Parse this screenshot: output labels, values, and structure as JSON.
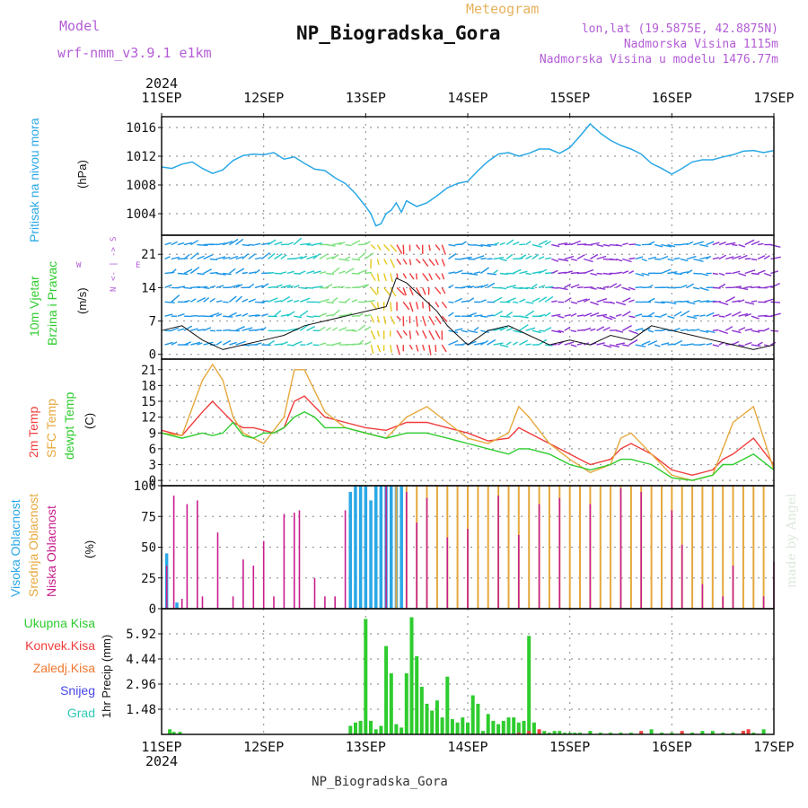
{
  "header": {
    "model_label": "Model",
    "model_name": "wrf-nmm_v3.9.1 e1km",
    "product": "Meteogram",
    "station": "NP_Biogradska_Gora",
    "lonlat": "lon,lat (19.5875E, 42.8875N)",
    "altitude": "Nadmorska Visina 1115m",
    "model_altitude": "Nadmorska Visina u modelu 1476.77m",
    "year_top": "2024",
    "year_bottom": "2024",
    "footer_station": "NP_Biogradska_Gora",
    "credit": "made by Angel"
  },
  "colors": {
    "pressure": "#2aa8e6",
    "temp2m": "#f03c3c",
    "sfc": "#e6a83c",
    "dewpt": "#2ecc2e",
    "high_cloud": "#2aa8e6",
    "mid_cloud": "#e6a83c",
    "low_cloud": "#c81e8c",
    "total_precip": "#2ecc2e",
    "conv_precip": "#f03c3c",
    "frozen_precip": "#f07830",
    "snow": "#4646e6",
    "hail": "#2ec8b4",
    "purple_text": "#b35cd6"
  },
  "chart_data": [
    {
      "type": "line",
      "panel": "pressure",
      "ylabel_color_text": "Pritisak na nivou mora",
      "ylabel": "(hPa)",
      "x_ticks": [
        "11SEP",
        "12SEP",
        "13SEP",
        "14SEP",
        "15SEP",
        "16SEP",
        "17SEP"
      ],
      "ylim": [
        1001,
        1017.5
      ],
      "y_ticks": [
        1004,
        1008,
        1012,
        1016
      ],
      "grid": true,
      "series": [
        {
          "x": [
            0,
            0.1,
            0.2,
            0.3,
            0.4,
            0.5,
            0.6,
            0.7,
            0.8,
            0.9,
            1.0,
            1.1,
            1.2,
            1.3,
            1.4,
            1.5,
            1.6,
            1.7,
            1.8,
            1.9,
            2.0,
            2.05,
            2.1,
            2.15,
            2.2,
            2.25,
            2.3,
            2.35,
            2.4,
            2.5,
            2.6,
            2.7,
            2.8,
            2.9,
            3.0,
            3.1,
            3.2,
            3.3,
            3.4,
            3.5,
            3.6,
            3.7,
            3.8,
            3.9,
            4.0,
            4.1,
            4.2,
            4.3,
            4.4,
            4.5,
            4.6,
            4.7,
            4.8,
            4.9,
            5.0,
            5.1,
            5.2,
            5.3,
            5.4,
            5.5,
            5.6,
            5.7,
            5.8,
            5.9,
            6.0
          ],
          "values": [
            1010.5,
            1010.3,
            1010.9,
            1011.2,
            1010.3,
            1009.6,
            1010.1,
            1011.4,
            1012.1,
            1012.3,
            1012.2,
            1012.5,
            1011.6,
            1011.9,
            1011.0,
            1010.2,
            1010.0,
            1009.0,
            1008.2,
            1006.8,
            1005.0,
            1004.0,
            1002.3,
            1002.6,
            1004.0,
            1004.5,
            1005.5,
            1004.2,
            1005.8,
            1005.0,
            1005.5,
            1006.5,
            1007.6,
            1008.2,
            1008.5,
            1010.0,
            1011.3,
            1012.3,
            1012.5,
            1012.0,
            1012.4,
            1013.0,
            1013.0,
            1012.4,
            1013.2,
            1014.8,
            1016.5,
            1015.2,
            1014.2,
            1013.5,
            1013.0,
            1012.3,
            1011.0,
            1010.3,
            1009.5,
            1010.3,
            1011.2,
            1011.5,
            1011.5,
            1011.9,
            1012.2,
            1012.7,
            1012.8,
            1012.5,
            1012.8
          ]
        }
      ]
    },
    {
      "type": "line",
      "panel": "wind",
      "ylabel_color_text_1": "10m Vjetar",
      "ylabel_color_text_2": "Brzina i Pravac",
      "ylabel": "(m/s)",
      "compass": [
        "N",
        "W",
        "E",
        "S"
      ],
      "ylim": [
        -1,
        25
      ],
      "y_ticks": [
        0,
        7,
        14,
        21
      ],
      "grid": true,
      "series": [
        {
          "name": "speed",
          "x": [
            0,
            0.2,
            0.4,
            0.6,
            0.8,
            1.0,
            1.2,
            1.4,
            1.6,
            1.8,
            2.0,
            2.2,
            2.3,
            2.4,
            2.5,
            2.6,
            2.7,
            2.8,
            2.9,
            3.0,
            3.2,
            3.4,
            3.6,
            3.8,
            4.0,
            4.2,
            4.4,
            4.6,
            4.8,
            5.0,
            5.2,
            5.4,
            5.6,
            5.8,
            6.0
          ],
          "values": [
            5,
            6,
            3,
            1,
            2,
            3,
            4,
            6,
            7,
            8,
            9,
            10,
            16,
            15,
            13,
            11,
            9,
            6,
            4,
            2,
            5,
            6,
            4,
            2,
            3,
            2,
            4,
            3,
            6,
            5,
            4,
            3,
            2,
            1,
            2
          ]
        }
      ],
      "arrow_colors_by_period": [
        {
          "x0": 0,
          "x1": 1.0,
          "color": "#1e96e6"
        },
        {
          "x0": 1.0,
          "x1": 1.5,
          "color": "#22c8c8"
        },
        {
          "x0": 1.5,
          "x1": 2.0,
          "color": "#7ee07e"
        },
        {
          "x0": 2.0,
          "x1": 2.25,
          "color": "#e6c81e"
        },
        {
          "x0": 2.25,
          "x1": 2.8,
          "color": "#f03c3c"
        },
        {
          "x0": 2.8,
          "x1": 3.2,
          "color": "#1e96e6"
        },
        {
          "x0": 3.2,
          "x1": 3.8,
          "color": "#22c8c8"
        },
        {
          "x0": 3.8,
          "x1": 4.6,
          "color": "#8c32d2"
        },
        {
          "x0": 4.6,
          "x1": 5.4,
          "color": "#1e96e6"
        },
        {
          "x0": 5.4,
          "x1": 6.0,
          "color": "#8c32d2"
        }
      ]
    },
    {
      "type": "line",
      "panel": "temperature",
      "ylabel_color_text_1": "2m Temp",
      "ylabel_color_text_2": "SFC Temp",
      "ylabel_color_text_3": "dewpt Temp",
      "ylabel": "(C)",
      "ylim": [
        -1,
        23
      ],
      "y_ticks": [
        0,
        3,
        6,
        9,
        12,
        15,
        18,
        21
      ],
      "grid": true,
      "x": [
        0,
        0.2,
        0.4,
        0.5,
        0.6,
        0.7,
        0.8,
        0.9,
        1.0,
        1.1,
        1.2,
        1.3,
        1.4,
        1.5,
        1.6,
        1.8,
        2.0,
        2.2,
        2.4,
        2.6,
        2.8,
        3.0,
        3.2,
        3.4,
        3.5,
        3.6,
        3.8,
        4.0,
        4.2,
        4.4,
        4.5,
        4.6,
        4.8,
        5.0,
        5.2,
        5.4,
        5.5,
        5.6,
        5.8,
        6.0
      ],
      "series": [
        {
          "name": "2m Temp",
          "values": [
            9.5,
            8.5,
            13,
            15,
            13,
            11,
            10,
            10,
            9.5,
            9,
            10,
            15,
            16,
            14,
            12,
            11,
            10,
            9.5,
            11,
            11,
            10,
            9,
            7.5,
            8,
            10,
            9,
            7,
            5,
            3,
            4,
            6,
            7,
            5,
            2,
            1,
            2,
            4,
            5,
            8,
            3
          ]
        },
        {
          "name": "SFC Temp",
          "values": [
            9,
            8.5,
            19,
            22,
            19,
            12,
            9,
            8,
            7,
            9.5,
            12,
            21,
            21,
            17,
            13,
            10,
            9,
            8,
            12,
            14,
            11,
            8,
            7,
            9,
            14,
            12,
            7,
            4,
            1.5,
            3,
            8,
            9,
            5,
            1,
            0,
            1,
            6,
            11,
            14,
            2
          ]
        },
        {
          "name": "dewpt Temp",
          "values": [
            9,
            8,
            9,
            8.5,
            9,
            11,
            8.5,
            8,
            9,
            9,
            10,
            12,
            13,
            12,
            10,
            10,
            9,
            8,
            9,
            9,
            8,
            7,
            6,
            5,
            6,
            6,
            5,
            3,
            2,
            3,
            4,
            4,
            3,
            0.5,
            0,
            1,
            3,
            3,
            5,
            2
          ]
        }
      ]
    },
    {
      "type": "bar",
      "panel": "clouds",
      "ylabel_color_text_1": "Visoka Oblacnost",
      "ylabel_color_text_2": "Srednja Oblacnost",
      "ylabel_color_text_3": "Niska Oblacnost",
      "ylabel": "(%)",
      "ylim": [
        0,
        100
      ],
      "y_ticks": [
        0,
        25,
        50,
        75,
        100
      ],
      "grid": true,
      "series": [
        {
          "name": "Visoka Oblacnost",
          "x": [
            0.05,
            0.15,
            1.85,
            1.9,
            1.95,
            2.0,
            2.05,
            2.1,
            2.15,
            2.2,
            2.25,
            2.3,
            2.35
          ],
          "values": [
            45,
            5,
            95,
            100,
            100,
            100,
            88,
            100,
            100,
            100,
            100,
            100,
            100
          ]
        },
        {
          "name": "Srednja Oblacnost",
          "x": [
            2.3,
            2.4,
            2.5,
            2.6,
            2.7,
            2.8,
            2.9,
            3.0,
            3.1,
            3.2,
            3.3,
            3.4,
            3.5,
            3.6,
            3.7,
            3.8,
            3.9,
            4.0,
            4.1,
            4.2,
            4.3,
            4.4,
            4.5,
            4.6,
            4.7,
            4.8,
            4.9,
            5.0,
            5.1,
            5.2,
            5.3,
            5.4,
            5.5,
            5.6,
            5.7,
            5.8,
            5.9
          ],
          "values": [
            100,
            100,
            100,
            100,
            100,
            100,
            100,
            100,
            100,
            100,
            100,
            100,
            100,
            100,
            100,
            100,
            100,
            100,
            100,
            100,
            100,
            100,
            100,
            100,
            100,
            100,
            100,
            100,
            100,
            100,
            100,
            100,
            100,
            100,
            100,
            100,
            100
          ]
        },
        {
          "name": "Niska Oblacnost",
          "x": [
            0.05,
            0.12,
            0.2,
            0.25,
            0.35,
            0.4,
            0.55,
            0.7,
            0.8,
            0.9,
            1.0,
            1.1,
            1.2,
            1.3,
            1.35,
            1.5,
            1.6,
            1.7,
            1.8,
            2.2,
            2.4,
            2.5,
            2.6,
            2.8,
            3.0,
            3.3,
            3.5,
            3.7,
            3.9,
            4.2,
            4.5,
            4.7,
            5.0,
            5.1,
            5.3,
            5.5,
            5.6,
            5.9,
            6.0
          ],
          "values": [
            35,
            92,
            8,
            85,
            88,
            10,
            62,
            10,
            40,
            35,
            55,
            10,
            77,
            78,
            80,
            25,
            10,
            10,
            80,
            100,
            95,
            70,
            90,
            58,
            65,
            92,
            60,
            85,
            90,
            85,
            98,
            95,
            80,
            52,
            20,
            10,
            35,
            10,
            38
          ]
        }
      ]
    },
    {
      "type": "bar",
      "panel": "precip",
      "ylabel_color_text_1": "Ukupna Kisa",
      "ylabel_color_text_2": "Konvek.Kisa",
      "ylabel_color_text_3": "Zaledj.Kisa",
      "ylabel_color_text_4": "Snijeg",
      "ylabel_color_text_5": "Grad",
      "ylabel": "1hr Precip (mm)",
      "ylim": [
        0,
        7.4
      ],
      "y_ticks": [
        "1.48",
        "2.96",
        "4.44",
        "5.92"
      ],
      "y_tick_values": [
        1.48,
        2.96,
        4.44,
        5.92
      ],
      "grid": true,
      "series": [
        {
          "name": "Ukupna Kisa",
          "x": [
            0.08,
            0.12,
            0.18,
            1.85,
            1.9,
            1.95,
            2.0,
            2.05,
            2.1,
            2.15,
            2.2,
            2.25,
            2.3,
            2.35,
            2.4,
            2.45,
            2.5,
            2.55,
            2.6,
            2.65,
            2.7,
            2.75,
            2.8,
            2.85,
            2.9,
            2.95,
            3.0,
            3.05,
            3.1,
            3.15,
            3.2,
            3.25,
            3.3,
            3.35,
            3.4,
            3.45,
            3.5,
            3.55,
            3.6,
            3.65,
            3.7,
            3.75,
            3.8,
            3.85,
            3.9,
            3.95,
            4.0,
            4.05,
            4.1,
            4.2,
            4.3,
            4.4,
            4.5,
            4.6,
            4.7,
            4.8,
            4.9,
            5.0,
            5.1,
            5.2,
            5.3,
            5.4,
            5.5,
            5.6,
            5.7,
            5.8,
            5.9
          ],
          "values": [
            0.3,
            0.15,
            0.15,
            0.5,
            0.7,
            0.8,
            6.8,
            0.8,
            0.3,
            0.5,
            5.2,
            3.6,
            0.6,
            0.4,
            3.6,
            6.9,
            4.6,
            2.8,
            1.8,
            1.4,
            2.0,
            1.0,
            3.4,
            0.9,
            0.7,
            1.0,
            0.7,
            2.3,
            1.8,
            0.2,
            1.2,
            0.8,
            0.6,
            0.8,
            1.0,
            1.0,
            0.7,
            0.8,
            5.8,
            0.7,
            0.2,
            0.2,
            0.1,
            0.2,
            0.2,
            0.1,
            0.1,
            0.1,
            0.1,
            0.2,
            0.1,
            0.1,
            0.1,
            0.1,
            0.1,
            0.3,
            0.1,
            0.1,
            0.1,
            0.1,
            0.2,
            0.2,
            0.1,
            0.1,
            0.2,
            0.1,
            0.3
          ]
        },
        {
          "name": "Konvek.Kisa",
          "x": [
            3.5,
            3.6,
            3.7,
            4.7,
            5.1,
            5.7,
            5.75
          ],
          "values": [
            0.1,
            0.2,
            0.3,
            0.2,
            0.2,
            0.2,
            0.3
          ]
        }
      ]
    }
  ]
}
